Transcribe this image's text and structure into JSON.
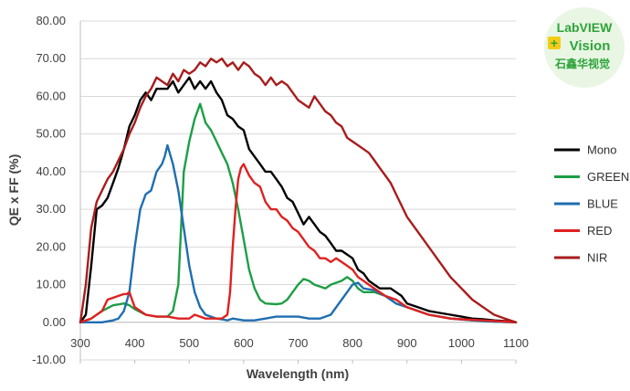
{
  "logo": {
    "line1": "LabVIEW",
    "line2": "Vision",
    "line3": "石鑫华视觉",
    "plus": "+",
    "colors": {
      "bg": "#e9f6e4",
      "text": "#2ea43a",
      "plus_bg": "#f5cc15",
      "plus_text": "#2ea43a"
    }
  },
  "chart_data": {
    "type": "line",
    "xlabel": "Wavelength (nm)",
    "ylabel": "QE x FF (%)",
    "xlim": [
      300,
      1100
    ],
    "ylim": [
      -10,
      80
    ],
    "xticks": [
      "300",
      "400",
      "500",
      "600",
      "700",
      "800",
      "900",
      "1000",
      "1100"
    ],
    "yticks": [
      "-10.00",
      "0.00",
      "10.00",
      "20.00",
      "30.00",
      "40.00",
      "50.00",
      "60.00",
      "70.00",
      "80.00"
    ],
    "grid": "horizontal",
    "legend_position": "right",
    "series": [
      {
        "name": "Mono",
        "color": "#000000",
        "x": [
          300,
          310,
          320,
          330,
          340,
          350,
          360,
          370,
          380,
          390,
          400,
          410,
          420,
          430,
          440,
          450,
          460,
          470,
          480,
          490,
          500,
          510,
          520,
          530,
          540,
          550,
          560,
          570,
          580,
          590,
          600,
          610,
          620,
          630,
          640,
          650,
          660,
          670,
          680,
          690,
          700,
          710,
          720,
          730,
          740,
          750,
          760,
          770,
          780,
          790,
          800,
          810,
          820,
          830,
          840,
          850,
          860,
          870,
          880,
          890,
          900,
          920,
          940,
          960,
          980,
          1000,
          1020,
          1040,
          1060,
          1080,
          1100
        ],
        "y": [
          0,
          2,
          15,
          30,
          31,
          33,
          37,
          41,
          46,
          52,
          55,
          59,
          61,
          59,
          62,
          62,
          62,
          64,
          61,
          63,
          65,
          62,
          64,
          62,
          64,
          61,
          59,
          55,
          54,
          52,
          51,
          46,
          44,
          42,
          40,
          40,
          38,
          36,
          33,
          32,
          29,
          26,
          28,
          26,
          24,
          23,
          21,
          19,
          19,
          18,
          17,
          14,
          13,
          11,
          10,
          9,
          9,
          9,
          8,
          7,
          5,
          4,
          3,
          2.5,
          2,
          1.5,
          1,
          0.8,
          0.5,
          0.3,
          0
        ]
      },
      {
        "name": "GREEN",
        "color": "#1e9e46",
        "x": [
          300,
          320,
          340,
          360,
          380,
          390,
          400,
          420,
          440,
          460,
          470,
          480,
          485,
          490,
          500,
          510,
          520,
          530,
          540,
          550,
          560,
          570,
          580,
          590,
          600,
          610,
          620,
          630,
          640,
          660,
          670,
          680,
          690,
          700,
          710,
          720,
          730,
          740,
          750,
          760,
          770,
          780,
          790,
          800,
          810,
          820,
          840,
          860,
          880,
          900,
          920,
          940,
          960,
          980,
          1000,
          1020,
          1040,
          1060,
          1080,
          1100
        ],
        "y": [
          0,
          1,
          3,
          4.5,
          5,
          4.5,
          3.5,
          2,
          1.5,
          1.5,
          3,
          10,
          25,
          40,
          48,
          54,
          58,
          53,
          51,
          48,
          45,
          42,
          37,
          30,
          22,
          14,
          9,
          6,
          5,
          4.8,
          5,
          6,
          8,
          10,
          11.5,
          11,
          10,
          9.5,
          9,
          10,
          10.5,
          11,
          12,
          11,
          9,
          8,
          8,
          7,
          5,
          4,
          3,
          2,
          1.5,
          1,
          0.8,
          0.5,
          0.3,
          0.2,
          0.1,
          0
        ]
      },
      {
        "name": "BLUE",
        "color": "#1f6eb0",
        "x": [
          300,
          340,
          360,
          370,
          380,
          390,
          400,
          410,
          420,
          430,
          440,
          450,
          455,
          460,
          470,
          480,
          490,
          500,
          510,
          520,
          530,
          540,
          550,
          560,
          570,
          580,
          600,
          620,
          640,
          660,
          680,
          700,
          720,
          740,
          760,
          770,
          780,
          790,
          800,
          810,
          820,
          840,
          860,
          880,
          900,
          940,
          980,
          1020,
          1060,
          1100
        ],
        "y": [
          0,
          0,
          0.5,
          1,
          3,
          8,
          20,
          30,
          34,
          35,
          40,
          42,
          44,
          47,
          42,
          35,
          25,
          15,
          8,
          4,
          2,
          1.5,
          1,
          0.8,
          0.5,
          1,
          0.5,
          0.5,
          1,
          1.5,
          1.5,
          1.5,
          1,
          1,
          2,
          4,
          6,
          8,
          10,
          10.5,
          9,
          8.5,
          7,
          5,
          4,
          2,
          1,
          0.5,
          0.2,
          0
        ]
      },
      {
        "name": "RED",
        "color": "#e02020",
        "x": [
          300,
          320,
          340,
          350,
          360,
          370,
          380,
          385,
          390,
          395,
          400,
          420,
          440,
          460,
          480,
          500,
          510,
          520,
          530,
          540,
          560,
          570,
          575,
          580,
          585,
          590,
          595,
          600,
          610,
          620,
          630,
          640,
          650,
          660,
          670,
          680,
          690,
          700,
          710,
          720,
          730,
          740,
          750,
          760,
          770,
          780,
          790,
          800,
          810,
          820,
          830,
          840,
          860,
          880,
          900,
          920,
          940,
          960,
          980,
          1000,
          1040,
          1080,
          1100
        ],
        "y": [
          0,
          1,
          3,
          6,
          6.5,
          7,
          7.5,
          7.5,
          8,
          6,
          4,
          2,
          1.5,
          1.5,
          1,
          1,
          2,
          1.5,
          1,
          1,
          1,
          2,
          8,
          20,
          30,
          38,
          41,
          42,
          39,
          37,
          36,
          32,
          30,
          30,
          28,
          27,
          25,
          24,
          22,
          20,
          19,
          17,
          17,
          16,
          17,
          16,
          15,
          14,
          12,
          11,
          10,
          9,
          7,
          6,
          4,
          3,
          2,
          1.5,
          1,
          0.8,
          0.5,
          0.2,
          0
        ]
      },
      {
        "name": "NIR",
        "color": "#a81c1c",
        "x": [
          300,
          310,
          320,
          330,
          340,
          350,
          360,
          370,
          380,
          390,
          400,
          410,
          420,
          430,
          440,
          450,
          460,
          470,
          480,
          490,
          500,
          510,
          520,
          530,
          540,
          550,
          560,
          570,
          580,
          590,
          600,
          610,
          620,
          630,
          640,
          650,
          660,
          670,
          680,
          690,
          700,
          710,
          720,
          730,
          740,
          750,
          760,
          770,
          780,
          790,
          800,
          810,
          820,
          830,
          840,
          850,
          860,
          870,
          880,
          890,
          900,
          910,
          920,
          940,
          960,
          980,
          1000,
          1020,
          1040,
          1060,
          1080,
          1100
        ],
        "y": [
          0,
          10,
          25,
          32,
          35,
          38,
          40,
          43,
          46,
          50,
          53,
          57,
          60,
          62,
          65,
          64,
          63,
          66,
          64,
          67,
          66,
          67,
          69,
          68,
          70,
          69,
          70,
          68,
          69,
          67,
          69,
          68,
          66,
          65,
          63,
          65,
          63,
          64,
          63,
          61,
          59,
          58,
          57,
          60,
          58,
          56,
          55,
          53,
          52,
          49,
          48,
          47,
          46,
          45,
          43,
          41,
          39,
          37,
          34,
          31,
          28,
          26,
          24,
          20,
          16,
          12,
          9,
          6,
          4,
          2,
          1,
          0
        ]
      }
    ]
  }
}
